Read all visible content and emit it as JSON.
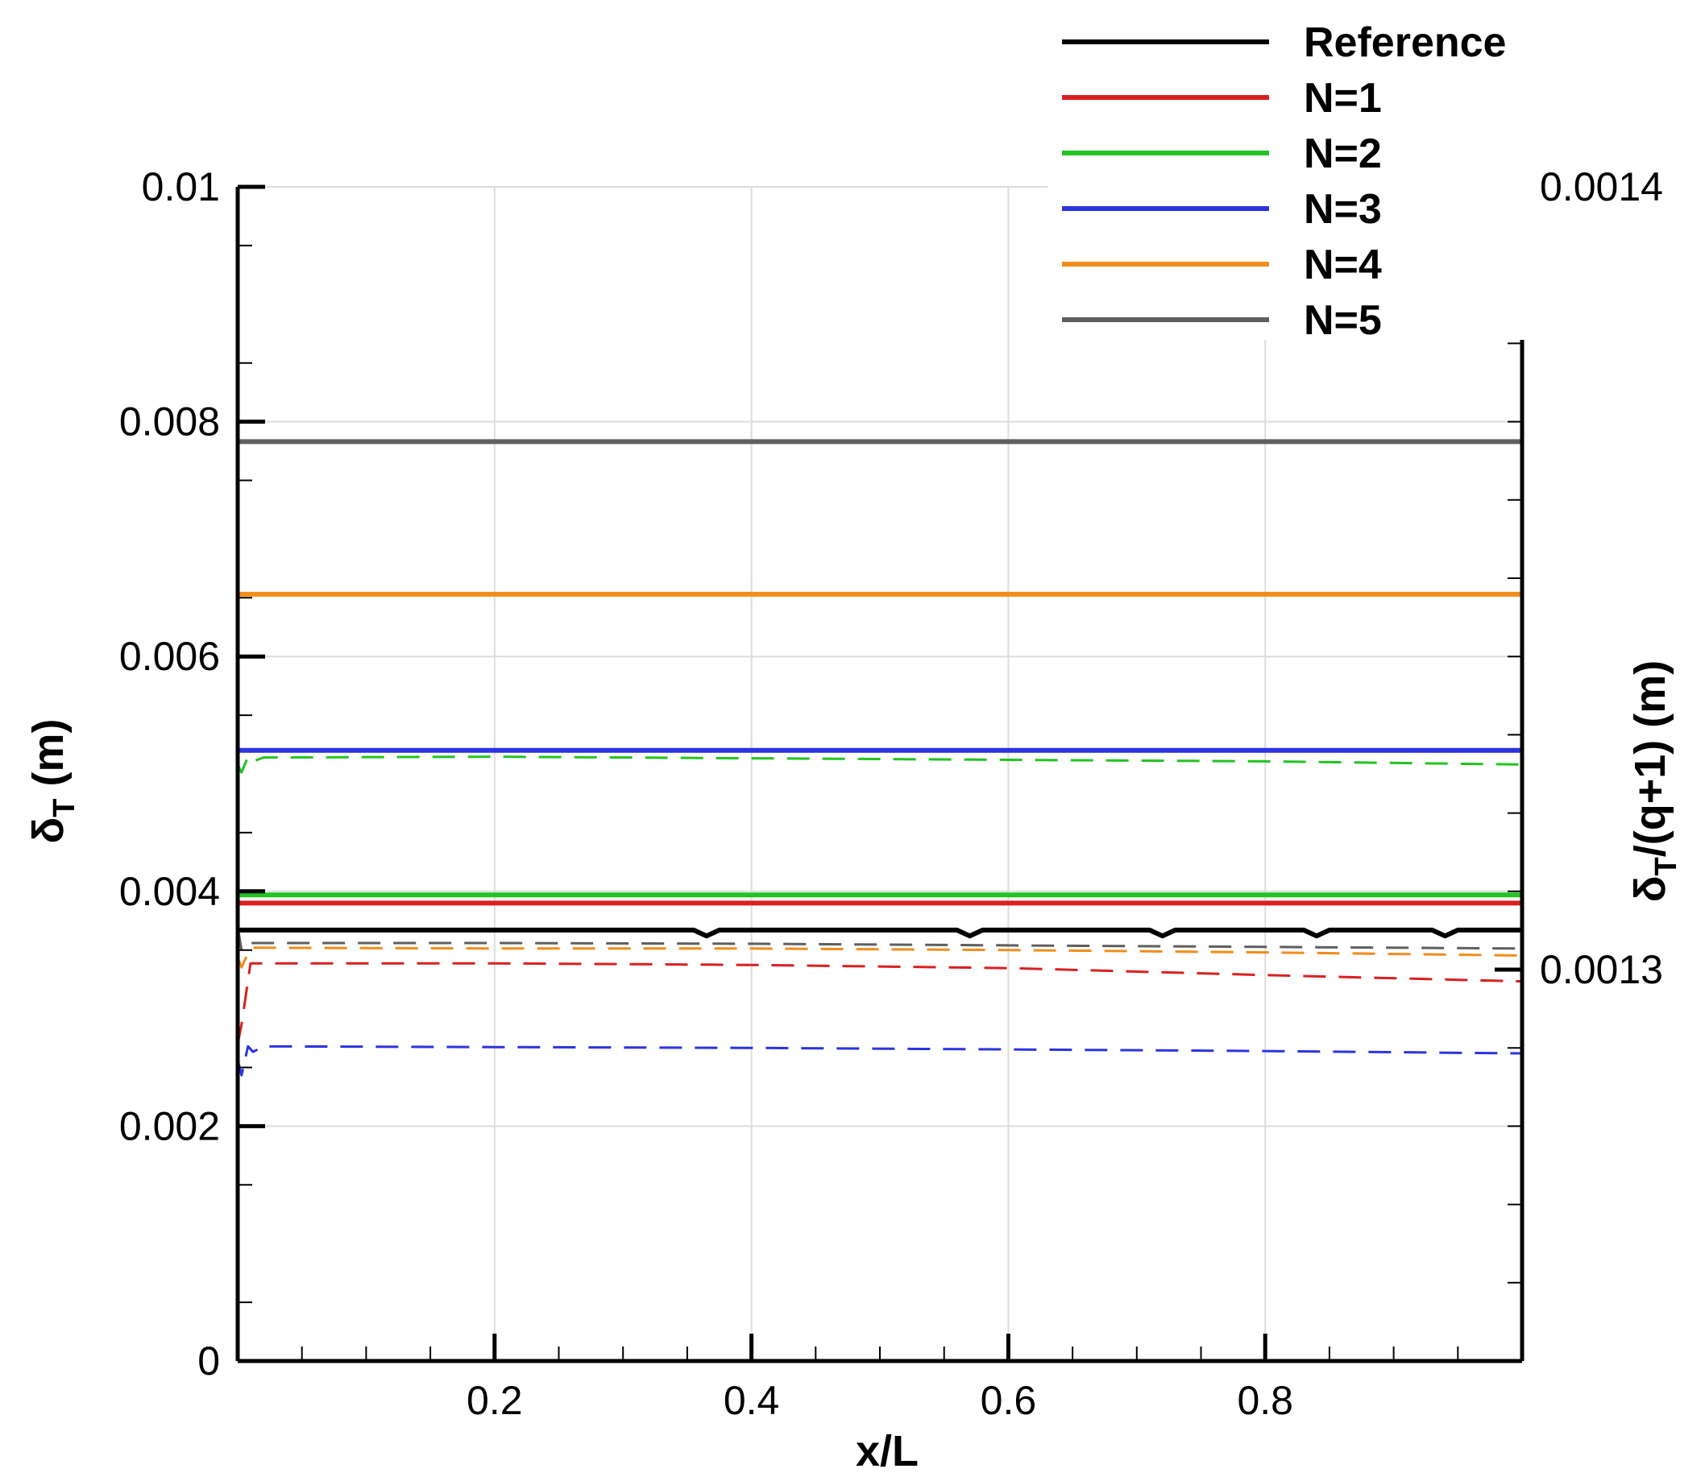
{
  "chart_data": {
    "type": "line",
    "xlabel": "x/L",
    "ylabel": "δ",
    "ylabel_sub": "T",
    "ylabel_unit": " (m)",
    "y2label_sub": "T",
    "y2label": "/(q+1) (m)",
    "xlim": [
      0,
      1
    ],
    "ylim": [
      0,
      0.01
    ],
    "y2lim": [
      0.00125,
      0.0014
    ],
    "xticks": [
      0.2,
      0.4,
      0.6,
      0.8
    ],
    "xtick_labels": [
      "0.2",
      "0.4",
      "0.6",
      "0.8"
    ],
    "yticks": [
      0,
      0.002,
      0.004,
      0.006,
      0.008,
      0.01
    ],
    "ytick_labels": [
      "0",
      "0.002",
      "0.004",
      "0.006",
      "0.008",
      "0.01"
    ],
    "y2ticks": [
      0.0013,
      0.0014
    ],
    "y2tick_labels": [
      "0.0013",
      "0.0014"
    ],
    "grid": true,
    "legend_position": "top-right",
    "legend": [
      {
        "name": "Reference",
        "color": "#000000"
      },
      {
        "name": "N=1",
        "color": "#d92020"
      },
      {
        "name": "N=2",
        "color": "#22c322"
      },
      {
        "name": "N=3",
        "color": "#2b34e0"
      },
      {
        "name": "N=4",
        "color": "#f28c1a"
      },
      {
        "name": "N=5",
        "color": "#5f5f5f"
      }
    ],
    "series": [
      {
        "name": "Reference",
        "axis": "left",
        "style": "solid",
        "color": "#000000",
        "x": [
          0,
          0.1,
          0.2,
          0.3,
          0.355,
          0.365,
          0.375,
          0.5,
          0.56,
          0.57,
          0.58,
          0.7,
          0.71,
          0.72,
          0.73,
          0.83,
          0.84,
          0.85,
          0.93,
          0.94,
          0.95,
          1
        ],
        "values": [
          0.00367,
          0.00367,
          0.00367,
          0.00367,
          0.00367,
          0.00362,
          0.00367,
          0.00367,
          0.00367,
          0.00362,
          0.00367,
          0.00367,
          0.00367,
          0.00362,
          0.00367,
          0.00367,
          0.00362,
          0.00367,
          0.00367,
          0.00362,
          0.00367,
          0.00367
        ]
      },
      {
        "name": "N=1",
        "axis": "left",
        "style": "solid",
        "color": "#d92020",
        "x": [
          0,
          0.5,
          1
        ],
        "values": [
          0.0039,
          0.0039,
          0.0039
        ]
      },
      {
        "name": "N=2",
        "axis": "left",
        "style": "solid",
        "color": "#22c322",
        "x": [
          0,
          0.5,
          1
        ],
        "values": [
          0.00397,
          0.00397,
          0.00397
        ]
      },
      {
        "name": "N=3",
        "axis": "left",
        "style": "solid",
        "color": "#2b34e0",
        "x": [
          0,
          0.5,
          1
        ],
        "values": [
          0.0052,
          0.0052,
          0.0052
        ]
      },
      {
        "name": "N=4",
        "axis": "left",
        "style": "solid",
        "color": "#f28c1a",
        "x": [
          0,
          0.5,
          1
        ],
        "values": [
          0.00653,
          0.00653,
          0.00653
        ]
      },
      {
        "name": "N=5",
        "axis": "left",
        "style": "solid",
        "color": "#5f5f5f",
        "x": [
          0,
          0.5,
          1
        ],
        "values": [
          0.00783,
          0.00783,
          0.00783
        ]
      },
      {
        "name": "N=1",
        "axis": "right",
        "style": "dashed",
        "color": "#d92020",
        "x": [
          0,
          0.003,
          0.01,
          0.2,
          0.4,
          0.6,
          0.8,
          1
        ],
        "values": [
          0.0012905,
          0.001293,
          0.0013008,
          0.0013008,
          0.0013006,
          0.0013002,
          0.0012993,
          0.0012985
        ]
      },
      {
        "name": "N=2",
        "axis": "right",
        "style": "dashed",
        "color": "#22c322",
        "x": [
          0,
          0.003,
          0.008,
          0.012,
          0.02,
          0.2,
          0.4,
          0.6,
          0.8,
          1
        ],
        "values": [
          0.0013262,
          0.0013252,
          0.0013272,
          0.0013266,
          0.0013271,
          0.0013272,
          0.001327,
          0.0013268,
          0.0013266,
          0.0013262
        ]
      },
      {
        "name": "N=3",
        "axis": "right",
        "style": "dashed",
        "color": "#2b34e0",
        "x": [
          0,
          0.003,
          0.008,
          0.012,
          0.02,
          0.2,
          0.4,
          0.6,
          0.8,
          1
        ],
        "values": [
          0.0012885,
          0.0012865,
          0.0012902,
          0.0012895,
          0.0012902,
          0.0012901,
          0.00129,
          0.0012898,
          0.0012896,
          0.0012893
        ]
      },
      {
        "name": "N=4",
        "axis": "right",
        "style": "dashed",
        "color": "#f28c1a",
        "x": [
          0,
          0.003,
          0.01,
          0.2,
          0.4,
          0.6,
          0.8,
          1
        ],
        "values": [
          0.0013016,
          0.0013003,
          0.0013028,
          0.0013027,
          0.0013027,
          0.0013025,
          0.0013022,
          0.0013018
        ]
      },
      {
        "name": "N=5",
        "axis": "right",
        "style": "dashed",
        "color": "#5f5f5f",
        "x": [
          0,
          0.003,
          0.01,
          0.2,
          0.4,
          0.6,
          0.8,
          1
        ],
        "values": [
          0.0013054,
          0.0013025,
          0.0013034,
          0.0013034,
          0.0013033,
          0.0013031,
          0.0013029,
          0.0013027
        ]
      }
    ]
  }
}
